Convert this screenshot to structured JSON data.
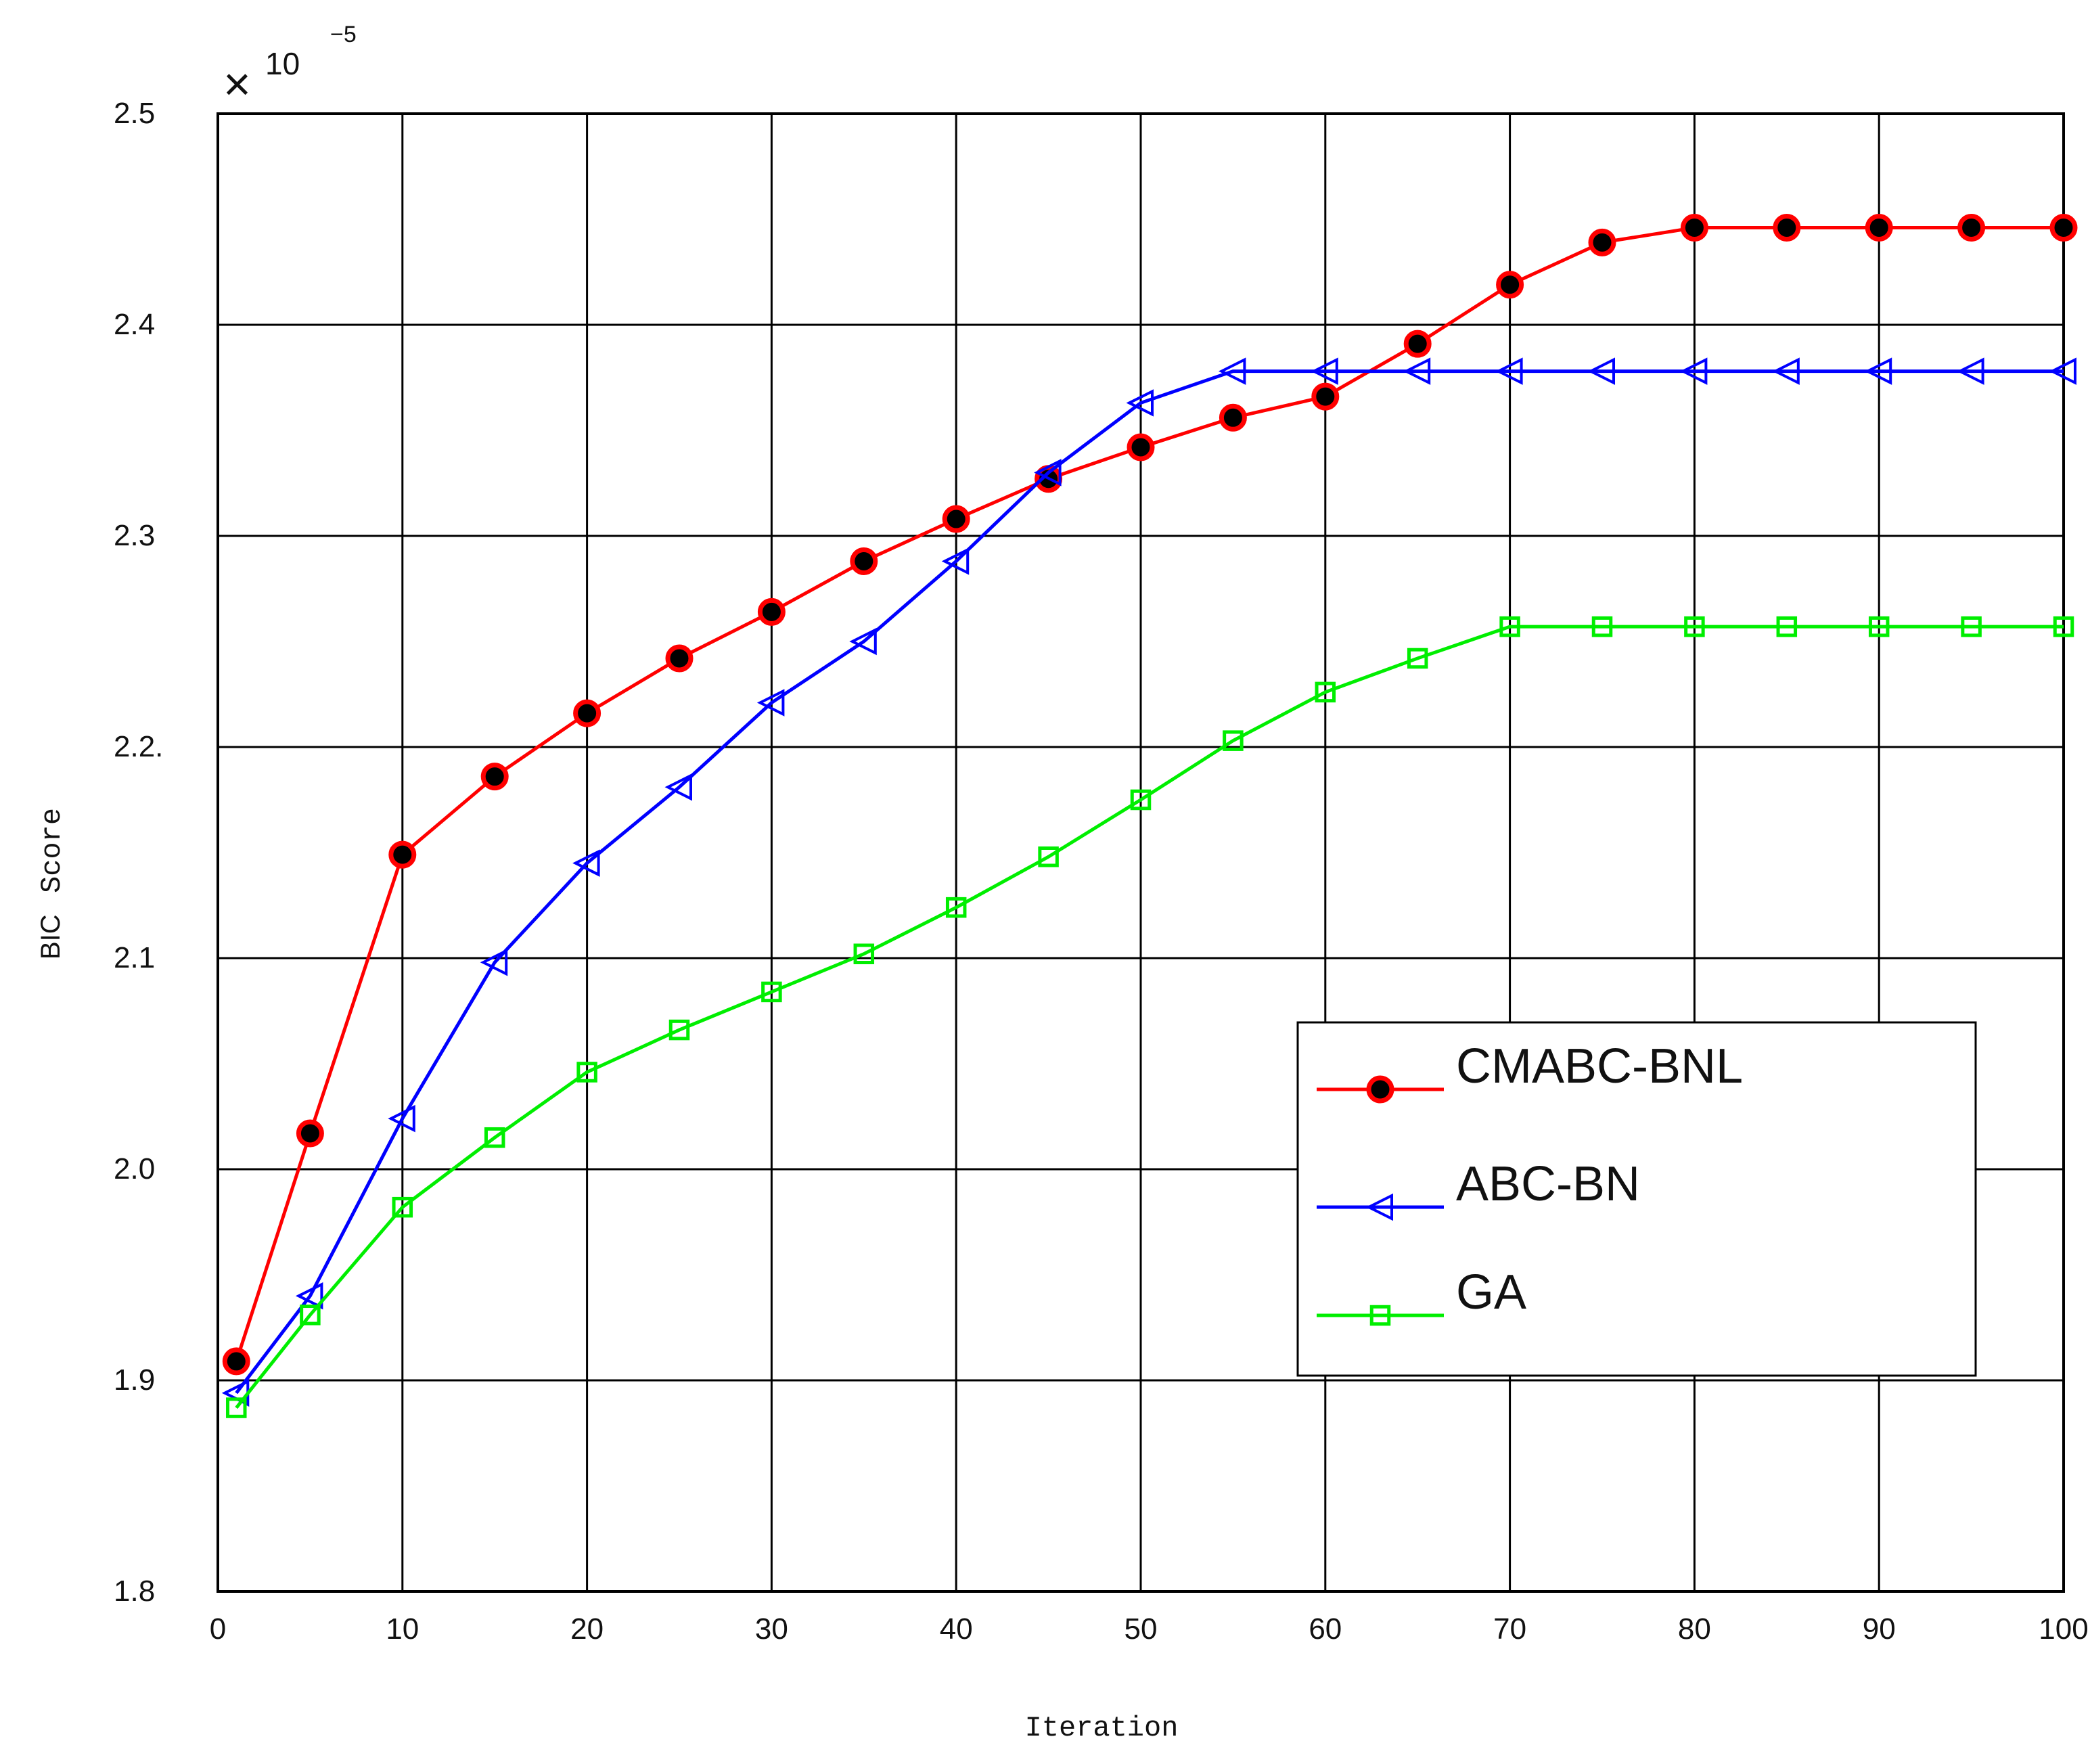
{
  "chart_data": {
    "type": "line",
    "xlabel": "Iteration",
    "ylabel_main": "BIC",
    "ylabel_sub": "Score",
    "exponent": {
      "multiplier": "10",
      "power": "−5"
    },
    "xlim": [
      0,
      100
    ],
    "ylim": [
      1.8,
      2.5
    ],
    "grid": true,
    "legend_placement": "center-right",
    "x_ticks": [
      {
        "value": 0,
        "label": "0"
      },
      {
        "value": 10,
        "label": "10"
      },
      {
        "value": 20,
        "label": "20"
      },
      {
        "value": 30,
        "label": "30"
      },
      {
        "value": 40,
        "label": "40"
      },
      {
        "value": 50,
        "label": "50"
      },
      {
        "value": 60,
        "label": "60"
      },
      {
        "value": 70,
        "label": "70"
      },
      {
        "value": 80,
        "label": "80"
      },
      {
        "value": 90,
        "label": "90"
      },
      {
        "value": 100,
        "label": "100"
      }
    ],
    "y_ticks": [
      {
        "value": 1.8,
        "label": "1.8"
      },
      {
        "value": 1.9,
        "label": "1.9"
      },
      {
        "value": 2.0,
        "label": "2.0"
      },
      {
        "value": 2.1,
        "label": "2.1"
      },
      {
        "value": 2.2,
        "label": "2.2."
      },
      {
        "value": 2.3,
        "label": "2.3"
      },
      {
        "value": 2.4,
        "label": "2.4"
      },
      {
        "value": 2.5,
        "label": "2.5"
      }
    ],
    "series": [
      {
        "name": "CMABC-BNL",
        "color": "#ff0000",
        "marker": "filled-circle",
        "marker_fill": "#000000",
        "x": [
          1,
          5,
          10,
          15,
          20,
          25,
          30,
          35,
          40,
          45,
          50,
          55,
          60,
          65,
          70,
          75,
          80,
          85,
          90,
          95,
          100
        ],
        "y": [
          1.909,
          2.017,
          2.149,
          2.186,
          2.216,
          2.242,
          2.264,
          2.288,
          2.308,
          2.327,
          2.342,
          2.356,
          2.366,
          2.391,
          2.419,
          2.439,
          2.446,
          2.446,
          2.446,
          2.446,
          2.446
        ]
      },
      {
        "name": "ABC-BN",
        "color": "#0000ff",
        "marker": "left-triangle",
        "marker_fill": "none",
        "x": [
          1,
          5,
          10,
          15,
          20,
          25,
          30,
          35,
          40,
          45,
          50,
          55,
          60,
          65,
          70,
          75,
          80,
          85,
          90,
          95,
          100
        ],
        "y": [
          1.894,
          1.94,
          2.024,
          2.098,
          2.145,
          2.181,
          2.221,
          2.25,
          2.288,
          2.33,
          2.363,
          2.378,
          2.378,
          2.378,
          2.378,
          2.378,
          2.378,
          2.378,
          2.378,
          2.378,
          2.378
        ]
      },
      {
        "name": "GA",
        "color": "#00ee00",
        "marker": "square",
        "marker_fill": "none",
        "x": [
          1,
          5,
          10,
          15,
          20,
          25,
          30,
          35,
          40,
          45,
          50,
          55,
          60,
          65,
          70,
          75,
          80,
          85,
          90,
          95,
          100
        ],
        "y": [
          1.887,
          1.931,
          1.982,
          2.015,
          2.046,
          2.066,
          2.084,
          2.102,
          2.124,
          2.148,
          2.175,
          2.203,
          2.226,
          2.242,
          2.257,
          2.257,
          2.257,
          2.257,
          2.257,
          2.257,
          2.257
        ]
      }
    ]
  }
}
